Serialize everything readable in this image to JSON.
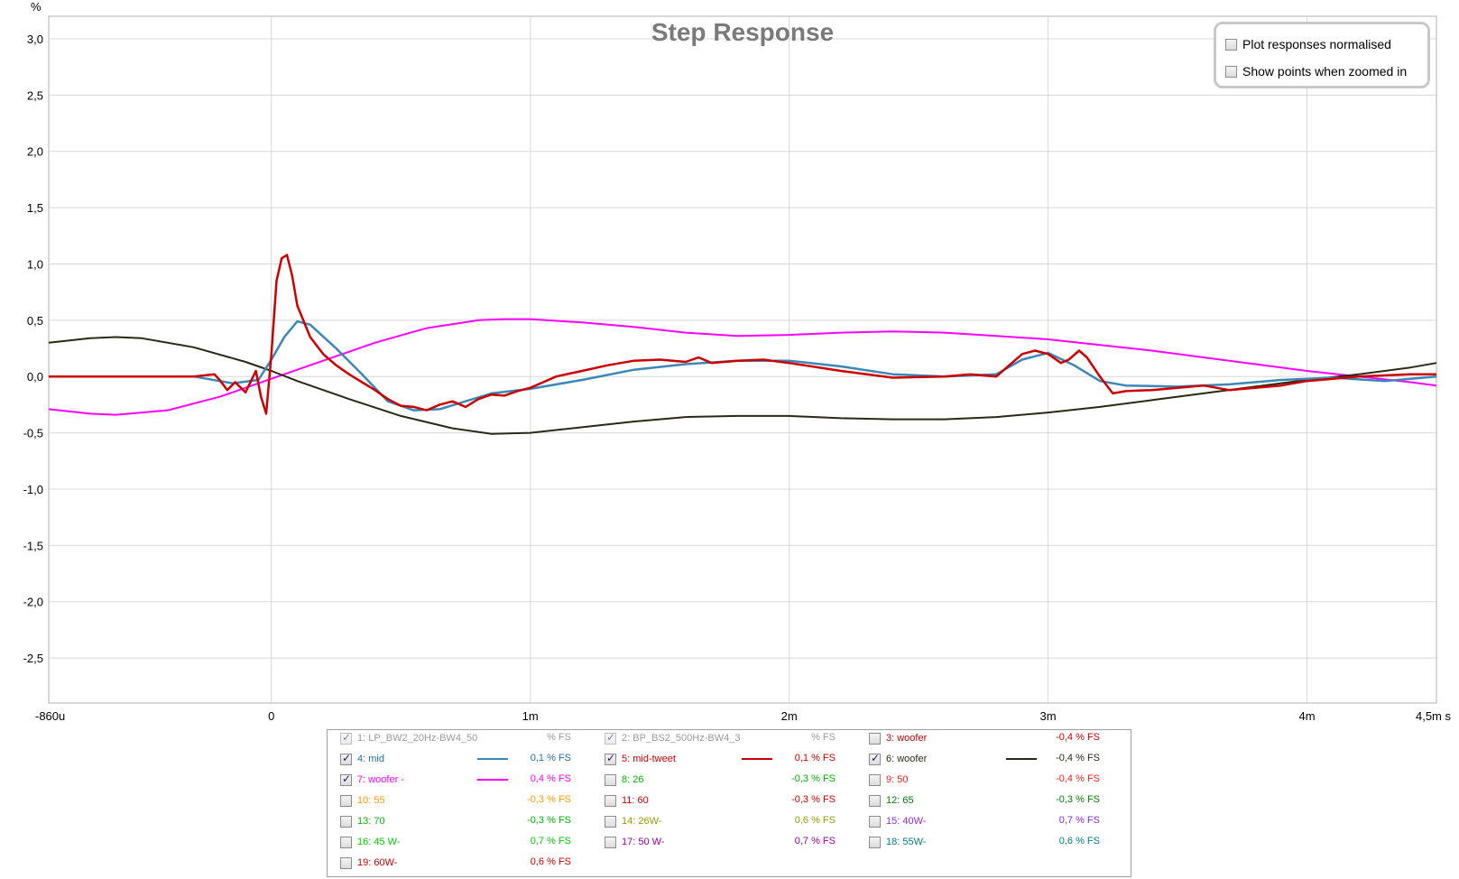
{
  "chart_data": {
    "type": "line",
    "title": "Step Response",
    "ylabel": "%",
    "xlabel": "",
    "xlim": [
      -0.86,
      4.5
    ],
    "ylim": [
      -2.9,
      3.2
    ],
    "grid": true,
    "y_ticks": [
      {
        "v": 3.0,
        "label": "3,0"
      },
      {
        "v": 2.5,
        "label": "2,5"
      },
      {
        "v": 2.0,
        "label": "2,0"
      },
      {
        "v": 1.5,
        "label": "1,5"
      },
      {
        "v": 1.0,
        "label": "1,0"
      },
      {
        "v": 0.5,
        "label": "0,5"
      },
      {
        "v": 0.0,
        "label": "0,0"
      },
      {
        "v": -0.5,
        "label": "-0,5"
      },
      {
        "v": -1.0,
        "label": "-1,0"
      },
      {
        "v": -1.5,
        "label": "-1,5"
      },
      {
        "v": -2.0,
        "label": "-2,0"
      },
      {
        "v": -2.5,
        "label": "-2,5"
      }
    ],
    "x_ticks": [
      {
        "v": -0.86,
        "label": "-860u"
      },
      {
        "v": 0,
        "label": "0"
      },
      {
        "v": 1,
        "label": "1m"
      },
      {
        "v": 2,
        "label": "2m"
      },
      {
        "v": 3,
        "label": "3m"
      },
      {
        "v": 4,
        "label": "4m"
      },
      {
        "v": 4.5,
        "label": "4,5m s"
      }
    ],
    "series": [
      {
        "name": "7: woofer -",
        "color": "#ff00ff",
        "width": 2,
        "points": [
          [
            -0.86,
            -0.29
          ],
          [
            -0.7,
            -0.33
          ],
          [
            -0.6,
            -0.34
          ],
          [
            -0.4,
            -0.3
          ],
          [
            -0.2,
            -0.18
          ],
          [
            0,
            -0.02
          ],
          [
            0.2,
            0.14
          ],
          [
            0.4,
            0.3
          ],
          [
            0.6,
            0.43
          ],
          [
            0.8,
            0.5
          ],
          [
            0.9,
            0.51
          ],
          [
            1.0,
            0.51
          ],
          [
            1.2,
            0.48
          ],
          [
            1.4,
            0.44
          ],
          [
            1.6,
            0.39
          ],
          [
            1.8,
            0.36
          ],
          [
            2.0,
            0.37
          ],
          [
            2.2,
            0.39
          ],
          [
            2.4,
            0.4
          ],
          [
            2.6,
            0.39
          ],
          [
            2.8,
            0.36
          ],
          [
            3.0,
            0.33
          ],
          [
            3.2,
            0.28
          ],
          [
            3.4,
            0.23
          ],
          [
            3.6,
            0.17
          ],
          [
            3.8,
            0.11
          ],
          [
            4.0,
            0.05
          ],
          [
            4.2,
            0.0
          ],
          [
            4.4,
            -0.05
          ],
          [
            4.5,
            -0.08
          ]
        ]
      },
      {
        "name": "6: woofer",
        "color": "#2a2a14",
        "width": 2,
        "points": [
          [
            -0.86,
            0.3
          ],
          [
            -0.7,
            0.34
          ],
          [
            -0.6,
            0.35
          ],
          [
            -0.5,
            0.34
          ],
          [
            -0.3,
            0.26
          ],
          [
            -0.1,
            0.13
          ],
          [
            0,
            0.05
          ],
          [
            0.1,
            -0.04
          ],
          [
            0.3,
            -0.2
          ],
          [
            0.5,
            -0.35
          ],
          [
            0.7,
            -0.46
          ],
          [
            0.85,
            -0.51
          ],
          [
            1.0,
            -0.5
          ],
          [
            1.2,
            -0.45
          ],
          [
            1.4,
            -0.4
          ],
          [
            1.6,
            -0.36
          ],
          [
            1.8,
            -0.35
          ],
          [
            2.0,
            -0.35
          ],
          [
            2.2,
            -0.37
          ],
          [
            2.4,
            -0.38
          ],
          [
            2.6,
            -0.38
          ],
          [
            2.8,
            -0.36
          ],
          [
            3.0,
            -0.32
          ],
          [
            3.2,
            -0.27
          ],
          [
            3.4,
            -0.21
          ],
          [
            3.6,
            -0.15
          ],
          [
            3.8,
            -0.09
          ],
          [
            4.0,
            -0.03
          ],
          [
            4.2,
            0.02
          ],
          [
            4.4,
            0.08
          ],
          [
            4.5,
            0.12
          ]
        ]
      },
      {
        "name": "4: mid",
        "color": "#3a87b8",
        "width": 2.5,
        "points": [
          [
            -0.86,
            0.0
          ],
          [
            -0.3,
            0.0
          ],
          [
            -0.15,
            -0.06
          ],
          [
            -0.05,
            -0.03
          ],
          [
            0,
            0.15
          ],
          [
            0.05,
            0.35
          ],
          [
            0.1,
            0.49
          ],
          [
            0.15,
            0.46
          ],
          [
            0.25,
            0.25
          ],
          [
            0.35,
            0.02
          ],
          [
            0.45,
            -0.22
          ],
          [
            0.55,
            -0.3
          ],
          [
            0.65,
            -0.29
          ],
          [
            0.75,
            -0.22
          ],
          [
            0.85,
            -0.15
          ],
          [
            1.0,
            -0.11
          ],
          [
            1.2,
            -0.03
          ],
          [
            1.4,
            0.06
          ],
          [
            1.6,
            0.11
          ],
          [
            1.8,
            0.14
          ],
          [
            2.0,
            0.14
          ],
          [
            2.2,
            0.09
          ],
          [
            2.4,
            0.02
          ],
          [
            2.6,
            0.0
          ],
          [
            2.8,
            0.02
          ],
          [
            2.9,
            0.15
          ],
          [
            3.0,
            0.21
          ],
          [
            3.1,
            0.1
          ],
          [
            3.2,
            -0.04
          ],
          [
            3.3,
            -0.08
          ],
          [
            3.5,
            -0.09
          ],
          [
            3.7,
            -0.07
          ],
          [
            3.9,
            -0.03
          ],
          [
            4.1,
            -0.01
          ],
          [
            4.3,
            -0.04
          ],
          [
            4.5,
            0.0
          ]
        ]
      },
      {
        "name": "5: mid-tweet",
        "color": "#cc0000",
        "width": 2.5,
        "points": [
          [
            -0.86,
            0.0
          ],
          [
            -0.3,
            0.0
          ],
          [
            -0.22,
            0.02
          ],
          [
            -0.2,
            -0.03
          ],
          [
            -0.17,
            -0.12
          ],
          [
            -0.14,
            -0.05
          ],
          [
            -0.1,
            -0.14
          ],
          [
            -0.06,
            0.05
          ],
          [
            -0.04,
            -0.18
          ],
          [
            -0.02,
            -0.33
          ],
          [
            0.0,
            0.2
          ],
          [
            0.02,
            0.85
          ],
          [
            0.04,
            1.05
          ],
          [
            0.06,
            1.08
          ],
          [
            0.08,
            0.9
          ],
          [
            0.1,
            0.63
          ],
          [
            0.15,
            0.35
          ],
          [
            0.2,
            0.2
          ],
          [
            0.25,
            0.1
          ],
          [
            0.3,
            0.02
          ],
          [
            0.35,
            -0.05
          ],
          [
            0.4,
            -0.12
          ],
          [
            0.45,
            -0.2
          ],
          [
            0.5,
            -0.26
          ],
          [
            0.55,
            -0.27
          ],
          [
            0.6,
            -0.3
          ],
          [
            0.65,
            -0.25
          ],
          [
            0.7,
            -0.22
          ],
          [
            0.75,
            -0.27
          ],
          [
            0.8,
            -0.2
          ],
          [
            0.85,
            -0.16
          ],
          [
            0.9,
            -0.17
          ],
          [
            0.95,
            -0.13
          ],
          [
            1.0,
            -0.1
          ],
          [
            1.05,
            -0.05
          ],
          [
            1.1,
            0.0
          ],
          [
            1.2,
            0.05
          ],
          [
            1.3,
            0.1
          ],
          [
            1.4,
            0.14
          ],
          [
            1.5,
            0.15
          ],
          [
            1.6,
            0.13
          ],
          [
            1.65,
            0.17
          ],
          [
            1.7,
            0.12
          ],
          [
            1.8,
            0.14
          ],
          [
            1.9,
            0.15
          ],
          [
            2.0,
            0.12
          ],
          [
            2.2,
            0.05
          ],
          [
            2.4,
            -0.01
          ],
          [
            2.6,
            0.0
          ],
          [
            2.7,
            0.02
          ],
          [
            2.8,
            0.0
          ],
          [
            2.9,
            0.2
          ],
          [
            2.95,
            0.23
          ],
          [
            3.0,
            0.2
          ],
          [
            3.05,
            0.12
          ],
          [
            3.08,
            0.15
          ],
          [
            3.12,
            0.23
          ],
          [
            3.15,
            0.17
          ],
          [
            3.2,
            0.0
          ],
          [
            3.25,
            -0.15
          ],
          [
            3.3,
            -0.13
          ],
          [
            3.4,
            -0.12
          ],
          [
            3.5,
            -0.1
          ],
          [
            3.6,
            -0.08
          ],
          [
            3.7,
            -0.12
          ],
          [
            3.8,
            -0.1
          ],
          [
            3.9,
            -0.08
          ],
          [
            4.0,
            -0.04
          ],
          [
            4.2,
            0.0
          ],
          [
            4.3,
            0.01
          ],
          [
            4.4,
            0.02
          ],
          [
            4.5,
            0.02
          ]
        ]
      }
    ]
  },
  "options": {
    "normalised_label": "Plot responses normalised",
    "show_points_label": "Show points when zoomed in"
  },
  "legend": {
    "rows": [
      [
        {
          "label": "1: LP_BW2_20Hz-BW4_50",
          "value": "% FS",
          "color": "#9a9a9a",
          "checked": true,
          "disabled": true,
          "swatch": ""
        },
        {
          "label": "2: BP_BS2_500Hz-BW4_3",
          "value": "% FS",
          "color": "#9a9a9a",
          "checked": true,
          "disabled": true,
          "swatch": ""
        },
        {
          "label": "3: woofer",
          "value": "-0,4 % FS",
          "color": "#cc0000",
          "checked": false,
          "disabled": false,
          "swatch": ""
        }
      ],
      [
        {
          "label": "4: mid",
          "value": "0,1 % FS",
          "color": "#1f6fa8",
          "checked": true,
          "disabled": false,
          "swatch": "#3a87b8"
        },
        {
          "label": "5: mid-tweet",
          "value": "0,1 % FS",
          "color": "#cc0000",
          "checked": true,
          "disabled": false,
          "swatch": "#cc0000"
        },
        {
          "label": "6: woofer",
          "value": "-0,4 % FS",
          "color": "#2a2a14",
          "checked": true,
          "disabled": false,
          "swatch": "#2a2a14"
        }
      ],
      [
        {
          "label": "7: woofer -",
          "value": "0,4 % FS",
          "color": "#ff00ff",
          "checked": true,
          "disabled": false,
          "swatch": "#ff00ff"
        },
        {
          "label": "8: 26",
          "value": "-0,3 % FS",
          "color": "#00b400",
          "checked": false,
          "disabled": false,
          "swatch": ""
        },
        {
          "label": "9: 50",
          "value": "-0,4 % FS",
          "color": "#ff2020",
          "checked": false,
          "disabled": false,
          "swatch": ""
        }
      ],
      [
        {
          "label": "10: 55",
          "value": "-0,3 % FS",
          "color": "#ff9900",
          "checked": false,
          "disabled": false,
          "swatch": ""
        },
        {
          "label": "11: 60",
          "value": "-0,3 % FS",
          "color": "#cc0000",
          "checked": false,
          "disabled": false,
          "swatch": ""
        },
        {
          "label": "12: 65",
          "value": "-0,3 % FS",
          "color": "#008000",
          "checked": false,
          "disabled": false,
          "swatch": ""
        }
      ],
      [
        {
          "label": "13: 70",
          "value": "-0,3 % FS",
          "color": "#00b400",
          "checked": false,
          "disabled": false,
          "swatch": ""
        },
        {
          "label": "14: 26W-",
          "value": "0,6 % FS",
          "color": "#999900",
          "checked": false,
          "disabled": false,
          "swatch": ""
        },
        {
          "label": "15: 40W-",
          "value": "0,7 % FS",
          "color": "#8a2be2",
          "checked": false,
          "disabled": false,
          "swatch": ""
        }
      ],
      [
        {
          "label": "16: 45 W-",
          "value": "0,7 % FS",
          "color": "#00cc00",
          "checked": false,
          "disabled": false,
          "swatch": ""
        },
        {
          "label": "17: 50 W-",
          "value": "0,7 % FS",
          "color": "#a000a0",
          "checked": false,
          "disabled": false,
          "swatch": ""
        },
        {
          "label": "18: 55W-",
          "value": "0,6 % FS",
          "color": "#008080",
          "checked": false,
          "disabled": false,
          "swatch": ""
        }
      ],
      [
        {
          "label": "19: 60W-",
          "value": "0,6 % FS",
          "color": "#cc0000",
          "checked": false,
          "disabled": false,
          "swatch": ""
        }
      ]
    ]
  }
}
